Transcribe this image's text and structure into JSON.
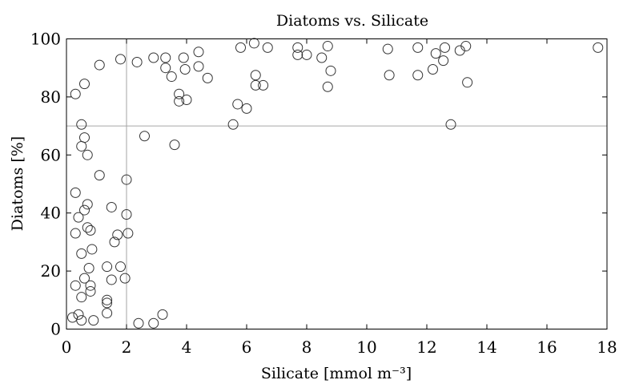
{
  "chart_data": {
    "type": "scatter",
    "title": "Diatoms vs. Silicate",
    "xlabel": "Silicate [mmol m⁻³]",
    "ylabel": "Diatoms [%]",
    "xlim": [
      0,
      18
    ],
    "ylim": [
      0,
      100
    ],
    "xticks": [
      "0",
      "2",
      "4",
      "6",
      "8",
      "10",
      "12",
      "14",
      "16",
      "18"
    ],
    "yticks": [
      "0",
      "20",
      "40",
      "60",
      "80",
      "100"
    ],
    "reference_lines": {
      "vertical_x": 2,
      "horizontal_y": 70
    },
    "grid": false,
    "colors": {
      "marker": "#333333",
      "axes": "#000000",
      "reference_line": "#a6a6a6"
    },
    "points": [
      [
        0.2,
        4
      ],
      [
        0.3,
        81
      ],
      [
        0.3,
        47
      ],
      [
        0.3,
        33
      ],
      [
        0.3,
        15
      ],
      [
        0.4,
        38.5
      ],
      [
        0.4,
        5
      ],
      [
        0.5,
        3
      ],
      [
        0.5,
        63
      ],
      [
        0.5,
        26
      ],
      [
        0.5,
        11
      ],
      [
        0.5,
        70.5
      ],
      [
        0.6,
        84.5
      ],
      [
        0.6,
        66
      ],
      [
        0.6,
        41
      ],
      [
        0.6,
        17.5
      ],
      [
        0.7,
        60
      ],
      [
        0.7,
        43
      ],
      [
        0.7,
        35
      ],
      [
        0.75,
        21
      ],
      [
        0.8,
        34
      ],
      [
        0.8,
        15
      ],
      [
        0.8,
        13
      ],
      [
        0.85,
        27.5
      ],
      [
        0.9,
        3
      ],
      [
        1.1,
        53
      ],
      [
        1.1,
        91
      ],
      [
        1.35,
        9
      ],
      [
        1.35,
        5.5
      ],
      [
        1.35,
        21.5
      ],
      [
        1.35,
        10
      ],
      [
        1.5,
        42
      ],
      [
        1.5,
        17
      ],
      [
        1.6,
        30
      ],
      [
        1.7,
        32.5
      ],
      [
        1.8,
        93
      ],
      [
        1.8,
        21.5
      ],
      [
        1.95,
        17.5
      ],
      [
        2.0,
        39.5
      ],
      [
        2.0,
        51.5
      ],
      [
        2.05,
        33
      ],
      [
        2.35,
        92
      ],
      [
        2.4,
        2
      ],
      [
        2.6,
        66.5
      ],
      [
        2.9,
        2
      ],
      [
        2.9,
        93.5
      ],
      [
        3.2,
        5
      ],
      [
        3.3,
        93.5
      ],
      [
        3.3,
        90
      ],
      [
        3.5,
        87
      ],
      [
        3.6,
        63.5
      ],
      [
        3.75,
        81
      ],
      [
        3.75,
        78.5
      ],
      [
        3.9,
        93.5
      ],
      [
        3.95,
        89.5
      ],
      [
        4.0,
        79
      ],
      [
        4.4,
        95.5
      ],
      [
        4.4,
        90.5
      ],
      [
        4.7,
        86.5
      ],
      [
        5.55,
        70.5
      ],
      [
        5.7,
        77.5
      ],
      [
        5.8,
        97
      ],
      [
        6.0,
        76
      ],
      [
        6.25,
        98.5
      ],
      [
        6.3,
        87.5
      ],
      [
        6.3,
        84
      ],
      [
        6.55,
        84
      ],
      [
        6.7,
        97
      ],
      [
        7.7,
        97
      ],
      [
        7.7,
        94.5
      ],
      [
        8.0,
        94.5
      ],
      [
        8.5,
        93.5
      ],
      [
        8.7,
        97.5
      ],
      [
        8.7,
        83.5
      ],
      [
        8.8,
        89
      ],
      [
        10.7,
        96.5
      ],
      [
        10.75,
        87.5
      ],
      [
        11.7,
        97
      ],
      [
        11.7,
        87.5
      ],
      [
        12.2,
        89.5
      ],
      [
        12.3,
        95
      ],
      [
        12.55,
        92.5
      ],
      [
        12.6,
        97
      ],
      [
        12.8,
        70.5
      ],
      [
        13.1,
        96
      ],
      [
        13.3,
        97.5
      ],
      [
        13.35,
        85
      ],
      [
        17.7,
        97
      ]
    ]
  }
}
